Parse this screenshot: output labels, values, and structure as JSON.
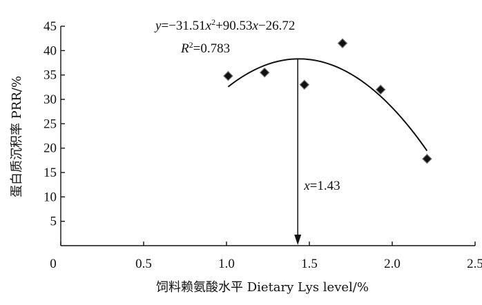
{
  "chart_data": {
    "type": "scatter",
    "xlabel": "饲料赖氨酸水平  Dietary Lys level/%",
    "ylabel": "蛋白质沉积率  PRR/%",
    "xlim": [
      0,
      2.5
    ],
    "ylim": [
      0,
      45
    ],
    "x_ticks": [
      "0",
      "0.5",
      "1.0",
      "1.5",
      "2.0",
      "2.5"
    ],
    "y_ticks": [
      "5",
      "10",
      "15",
      "20",
      "25",
      "30",
      "35",
      "40",
      "45"
    ],
    "grid": false,
    "points": [
      {
        "x": 1.01,
        "y": 34.8
      },
      {
        "x": 1.23,
        "y": 35.5
      },
      {
        "x": 1.47,
        "y": 33.0
      },
      {
        "x": 1.7,
        "y": 41.5
      },
      {
        "x": 1.93,
        "y": 32.0
      },
      {
        "x": 2.21,
        "y": 17.8
      }
    ],
    "fit": {
      "a": -31.51,
      "b": 90.53,
      "c": -26.72,
      "x_range": [
        1.01,
        2.21
      ],
      "equation_label": "y=−31.51x²+90.53x−26.72",
      "r2_label": "R²=0.783",
      "optimum_x": 1.43,
      "optimum_label": "x=1.43"
    },
    "colors": {
      "axis": "#111111",
      "marker_fill": "#111111",
      "marker_edge": "#777777"
    }
  }
}
